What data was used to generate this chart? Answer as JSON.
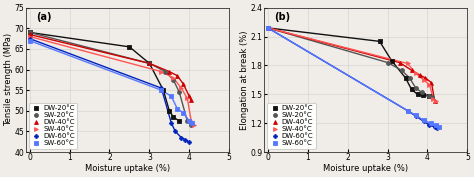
{
  "panel_a": {
    "title": "(a)",
    "xlabel": "Moisture uptake (%)",
    "ylabel": "Tensile strength (MPa)",
    "xlim": [
      -0.1,
      5
    ],
    "ylim": [
      40,
      75
    ],
    "yticks": [
      40,
      45,
      50,
      55,
      60,
      65,
      70,
      75
    ],
    "xticks": [
      0,
      1,
      2,
      3,
      4,
      5
    ],
    "series": [
      {
        "label": "DW-20°C",
        "color": "#111111",
        "marker": "s",
        "x": [
          0.0,
          2.5,
          3.0,
          3.35,
          3.5,
          3.6,
          3.75
        ],
        "y": [
          69.0,
          65.5,
          61.5,
          55.0,
          50.0,
          48.5,
          47.5
        ]
      },
      {
        "label": "SW-20°C",
        "color": "#555555",
        "marker": "o",
        "x": [
          0.0,
          3.0,
          3.4,
          3.6,
          3.75,
          3.95,
          4.05
        ],
        "y": [
          69.0,
          61.5,
          59.5,
          57.5,
          54.5,
          47.5,
          46.5
        ]
      },
      {
        "label": "DW-40°C",
        "color": "#cc0000",
        "marker": "^",
        "x": [
          0.0,
          3.0,
          3.5,
          3.7,
          3.85,
          4.0,
          4.05
        ],
        "y": [
          68.5,
          61.5,
          59.5,
          58.5,
          56.5,
          53.5,
          52.5
        ]
      },
      {
        "label": "SW-40°C",
        "color": "#ff5555",
        "marker": ">",
        "x": [
          0.0,
          3.3,
          3.6,
          3.8,
          3.95,
          4.05,
          4.12
        ],
        "y": [
          68.0,
          59.5,
          58.0,
          55.5,
          53.0,
          47.5,
          46.5
        ]
      },
      {
        "label": "DW-60°C",
        "color": "#0022bb",
        "marker": "+",
        "x": [
          0.0,
          3.3,
          3.55,
          3.65,
          3.8,
          3.9,
          3.98
        ],
        "y": [
          67.5,
          55.5,
          47.0,
          45.0,
          43.5,
          43.0,
          42.5
        ]
      },
      {
        "label": "SW-60°C",
        "color": "#5577ff",
        "marker": "s",
        "x": [
          0.0,
          3.3,
          3.55,
          3.7,
          3.85,
          4.0,
          4.08
        ],
        "y": [
          67.0,
          55.0,
          53.5,
          50.5,
          49.5,
          47.5,
          47.0
        ]
      }
    ]
  },
  "panel_b": {
    "title": "(b)",
    "xlabel": "Moisture uptake (%)",
    "ylabel": "Elongation at break (%)",
    "xlim": [
      -0.1,
      5
    ],
    "ylim": [
      0.9,
      2.4
    ],
    "yticks": [
      0.9,
      1.2,
      1.5,
      1.8,
      2.1,
      2.4
    ],
    "xticks": [
      0,
      1,
      2,
      3,
      4,
      5
    ],
    "series": [
      {
        "label": "DW-20°C",
        "color": "#111111",
        "marker": "s",
        "x": [
          0.0,
          2.8,
          3.1,
          3.45,
          3.6,
          3.75,
          3.88,
          4.05
        ],
        "y": [
          2.19,
          2.05,
          1.85,
          1.67,
          1.55,
          1.5,
          1.49,
          1.48
        ]
      },
      {
        "label": "SW-20°C",
        "color": "#555555",
        "marker": "o",
        "x": [
          0.0,
          3.0,
          3.35,
          3.55,
          3.7,
          3.85,
          4.05,
          4.12
        ],
        "y": [
          2.19,
          1.83,
          1.75,
          1.67,
          1.57,
          1.52,
          1.48,
          1.47
        ]
      },
      {
        "label": "DW-40°C",
        "color": "#cc0000",
        "marker": "^",
        "x": [
          0.0,
          3.3,
          3.6,
          3.8,
          3.95,
          4.1,
          4.18
        ],
        "y": [
          2.19,
          1.83,
          1.75,
          1.7,
          1.67,
          1.62,
          1.43
        ]
      },
      {
        "label": "SW-40°C",
        "color": "#ff5555",
        "marker": ">",
        "x": [
          0.0,
          3.5,
          3.7,
          3.9,
          4.05,
          4.15,
          4.22
        ],
        "y": [
          2.19,
          1.82,
          1.72,
          1.65,
          1.6,
          1.45,
          1.43
        ]
      },
      {
        "label": "DW-60°C",
        "color": "#0022bb",
        "marker": "+",
        "x": [
          0.0,
          3.5,
          3.72,
          3.9,
          4.05,
          4.18,
          4.25
        ],
        "y": [
          2.19,
          1.33,
          1.27,
          1.22,
          1.18,
          1.16,
          1.15
        ]
      },
      {
        "label": "SW-60°C",
        "color": "#5577ff",
        "marker": "s",
        "x": [
          0.0,
          3.5,
          3.72,
          3.9,
          4.08,
          4.22,
          4.3
        ],
        "y": [
          2.19,
          1.33,
          1.28,
          1.23,
          1.2,
          1.18,
          1.16
        ]
      }
    ]
  },
  "legend_fontsize": 5.0,
  "tick_fontsize": 5.5,
  "label_fontsize": 6.0,
  "title_fontsize": 7.0,
  "linewidth": 1.0,
  "markersize": 2.8,
  "background_color": "#f0ede8"
}
